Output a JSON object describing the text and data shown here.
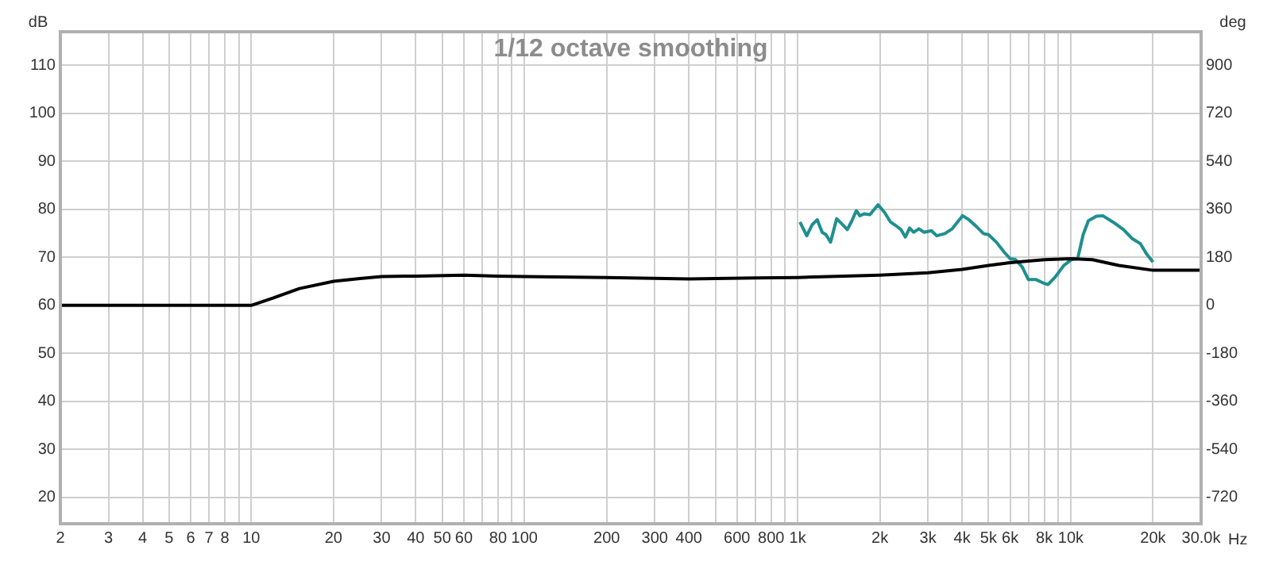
{
  "chart_data": {
    "type": "line",
    "title": "1/12 octave smoothing",
    "xlabel": "Hz",
    "ylabel": "dB",
    "y2label": "deg",
    "log": "x",
    "grid": true,
    "legend": false,
    "marker": "none",
    "line_style": "solid",
    "xlim": [
      2,
      30000
    ],
    "xticks": [
      2,
      3,
      4,
      5,
      6,
      7,
      8,
      {
        "value": 9,
        "label": null
      },
      10,
      20,
      30,
      40,
      50,
      60,
      {
        "value": 70,
        "label": null
      },
      80,
      {
        "value": 90,
        "label": null
      },
      100,
      200,
      300,
      400,
      {
        "value": 500,
        "label": null
      },
      600,
      {
        "value": 700,
        "label": null
      },
      800,
      {
        "value": 900,
        "label": null
      },
      {
        "value": 1000,
        "label": "1k"
      },
      {
        "value": 2000,
        "label": "2k"
      },
      {
        "value": 3000,
        "label": "3k"
      },
      {
        "value": 4000,
        "label": "4k"
      },
      {
        "value": 5000,
        "label": "5k"
      },
      {
        "value": 6000,
        "label": "6k"
      },
      {
        "value": 7000,
        "label": null
      },
      {
        "value": 8000,
        "label": "8k"
      },
      {
        "value": 9000,
        "label": null
      },
      {
        "value": 10000,
        "label": "10k"
      },
      {
        "value": 20000,
        "label": "20k"
      },
      {
        "value": 30000,
        "label": "30.0k"
      }
    ],
    "ylim": [
      14.5,
      117
    ],
    "yticks": [
      20,
      30,
      40,
      50,
      60,
      70,
      80,
      90,
      100,
      110
    ],
    "y2lim": [
      -819,
      1026
    ],
    "y2ticks": [
      -720,
      -540,
      -360,
      -180,
      0,
      180,
      360,
      540,
      720,
      900
    ],
    "series": [
      {
        "color": "#000000",
        "x": [
          2,
          10,
          12,
          15,
          20,
          25,
          30,
          40,
          60,
          80,
          100,
          200,
          400,
          700,
          1000,
          2000,
          3000,
          4000,
          5000,
          6000,
          8000,
          10000,
          12000,
          15000,
          20000,
          30000
        ],
        "values": [
          60,
          60,
          61.5,
          63.5,
          65,
          65.6,
          66,
          66.1,
          66.3,
          66.1,
          66,
          65.8,
          65.5,
          65.7,
          65.8,
          66.3,
          66.8,
          67.5,
          68.3,
          68.9,
          69.5,
          69.7,
          69.5,
          68.3,
          67.3,
          67.3
        ]
      },
      {
        "color": "#1f8f8f",
        "axis": "y2",
        "x": [
          1020,
          1080,
          1130,
          1180,
          1230,
          1270,
          1320,
          1390,
          1450,
          1520,
          1580,
          1640,
          1690,
          1750,
          1840,
          1970,
          2080,
          2190,
          2290,
          2390,
          2480,
          2570,
          2660,
          2780,
          2900,
          3090,
          3230,
          3460,
          3680,
          4020,
          4240,
          4540,
          4790,
          5000,
          5340,
          5700,
          6000,
          6270,
          6640,
          6990,
          7440,
          7920,
          8250,
          8770,
          9440,
          10100,
          10600,
          11100,
          11600,
          12400,
          13100,
          14300,
          15600,
          16800,
          18000,
          18900,
          20000
        ],
        "values": [
          312,
          261,
          302,
          321,
          274,
          265,
          237,
          325,
          306,
          284,
          317,
          355,
          336,
          343,
          340,
          377,
          349,
          312,
          299,
          284,
          256,
          290,
          274,
          287,
          274,
          280,
          261,
          269,
          287,
          336,
          321,
          293,
          269,
          265,
          237,
          200,
          175,
          172,
          144,
          97,
          97,
          84,
          78,
          106,
          150,
          172,
          175,
          265,
          317,
          334,
          336,
          312,
          284,
          250,
          231,
          194,
          162
        ]
      }
    ]
  }
}
